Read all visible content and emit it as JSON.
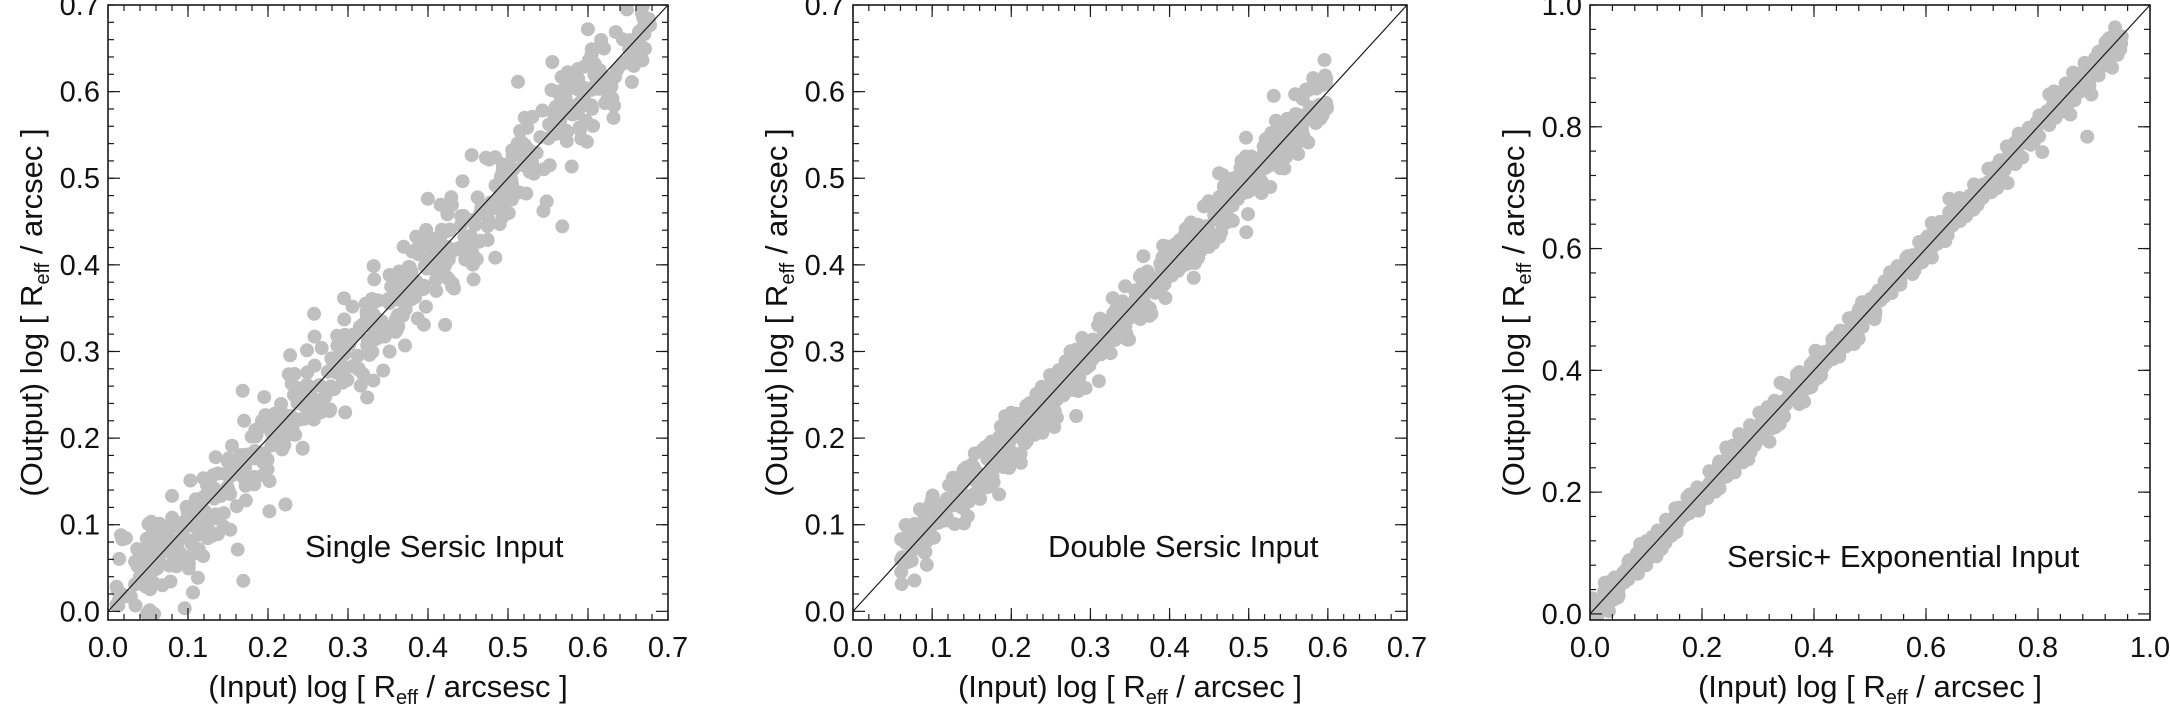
{
  "colors": {
    "points": "#bfbfbf",
    "axes": "#1a1a1a",
    "reference_line": "#1a1a1a",
    "text": "#111111"
  },
  "chart_data": [
    {
      "type": "scatter",
      "annotation": "Single Sersic Input",
      "xlabel": {
        "prefix": "(Input) log [ R",
        "subscript": "eff",
        "suffix": " / arcsesc ]"
      },
      "ylabel": {
        "prefix": "(Output) log [ R",
        "subscript": "eff",
        "suffix": " / arcsec ]"
      },
      "xlim": [
        0.0,
        0.7
      ],
      "ylim": [
        -0.01,
        0.7
      ],
      "xticks": [
        0.0,
        0.1,
        0.2,
        0.3,
        0.4,
        0.5,
        0.6,
        0.7
      ],
      "yticks": [
        0.0,
        0.1,
        0.2,
        0.3,
        0.4,
        0.5,
        0.6,
        0.7
      ],
      "tick_labels_x": [
        "0.0",
        "0.1",
        "0.2",
        "0.3",
        "0.4",
        "0.5",
        "0.6",
        "0.7"
      ],
      "tick_labels_y": [
        "0.0",
        "0.1",
        "0.2",
        "0.3",
        "0.4",
        "0.5",
        "0.6",
        "0.7"
      ],
      "reference_line": "y = x",
      "grid": false,
      "series": [
        {
          "marker": "filled-circle",
          "count": 620,
          "x_range": [
            0.01,
            0.68
          ],
          "relation": "y ≈ x",
          "scatter": 0.028,
          "seed": 7
        }
      ]
    },
    {
      "type": "scatter",
      "annotation": "Double Sersic Input",
      "xlabel": {
        "prefix": "(Input) log [ R",
        "subscript": "eff",
        "suffix": " / arcsec ]"
      },
      "ylabel": {
        "prefix": "(Output) log [ R",
        "subscript": "eff",
        "suffix": " / arcsec ]"
      },
      "xlim": [
        0.0,
        0.7
      ],
      "ylim": [
        -0.01,
        0.7
      ],
      "xticks": [
        0.0,
        0.1,
        0.2,
        0.3,
        0.4,
        0.5,
        0.6,
        0.7
      ],
      "yticks": [
        0.0,
        0.1,
        0.2,
        0.3,
        0.4,
        0.5,
        0.6,
        0.7
      ],
      "tick_labels_x": [
        "0.0",
        "0.1",
        "0.2",
        "0.3",
        "0.4",
        "0.5",
        "0.6",
        "0.7"
      ],
      "tick_labels_y": [
        "0.0",
        "0.1",
        "0.2",
        "0.3",
        "0.4",
        "0.5",
        "0.6",
        "0.7"
      ],
      "reference_line": "y = x",
      "grid": false,
      "series": [
        {
          "marker": "filled-circle",
          "count": 620,
          "x_range": [
            0.06,
            0.6
          ],
          "relation": "y ≈ x",
          "scatter": 0.016,
          "seed": 19
        }
      ]
    },
    {
      "type": "scatter",
      "annotation": "Sersic+ Exponential Input",
      "xlabel": {
        "prefix": "(Input) log [ R",
        "subscript": "eff",
        "suffix": " / arcsec ]"
      },
      "ylabel": {
        "prefix": "(Output) log [ R",
        "subscript": "eff",
        "suffix": " / arcsec ]"
      },
      "xlim": [
        0.0,
        1.0
      ],
      "ylim": [
        -0.01,
        1.0
      ],
      "xticks": [
        0.0,
        0.2,
        0.4,
        0.6,
        0.8,
        1.0
      ],
      "yticks": [
        0.0,
        0.2,
        0.4,
        0.6,
        0.8,
        1.0
      ],
      "tick_labels_x": [
        "0.0",
        "0.2",
        "0.4",
        "0.6",
        "0.8",
        "1.0"
      ],
      "tick_labels_y": [
        "0.0",
        "0.2",
        "0.4",
        "0.6",
        "0.8",
        "1.0"
      ],
      "reference_line": "y = x",
      "grid": false,
      "series": [
        {
          "marker": "filled-circle",
          "count": 620,
          "x_range": [
            0.0,
            0.95
          ],
          "relation": "y ≈ x",
          "scatter": 0.014,
          "seed": 31
        }
      ]
    }
  ]
}
